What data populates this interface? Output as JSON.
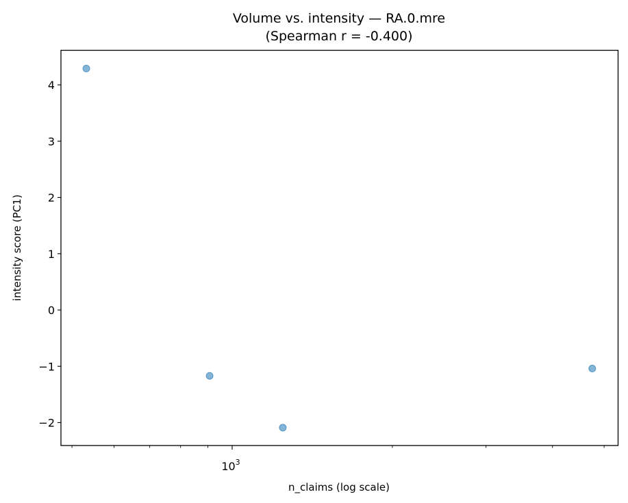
{
  "chart_data": {
    "type": "scatter",
    "title": "Volume vs. intensity — RA.0.mre",
    "subtitle": "(Spearman r = -0.400)",
    "xlabel": "n_claims (log scale)",
    "ylabel": "intensity score (PC1)",
    "xscale": "log",
    "xlim": [
      475,
      5400
    ],
    "ylim": [
      -2.4,
      4.62
    ],
    "x_major_ticks": [
      {
        "value": 1000,
        "label_base": "10",
        "label_exp": "3"
      }
    ],
    "x_minor_ticks": [
      500,
      600,
      700,
      800,
      900,
      2000,
      3000,
      4000,
      5000
    ],
    "y_ticks": [
      -2,
      -1,
      0,
      1,
      2,
      3,
      4
    ],
    "y_tick_labels": [
      "−2",
      "−1",
      "0",
      "1",
      "2",
      "3",
      "4"
    ],
    "grid": false,
    "legend": null,
    "marker_color": "#1f77b4",
    "marker_alpha": 0.55,
    "points": [
      {
        "x": 532,
        "y": 4.29
      },
      {
        "x": 907,
        "y": -1.17
      },
      {
        "x": 1245,
        "y": -2.09
      },
      {
        "x": 4750,
        "y": -1.04
      }
    ]
  }
}
